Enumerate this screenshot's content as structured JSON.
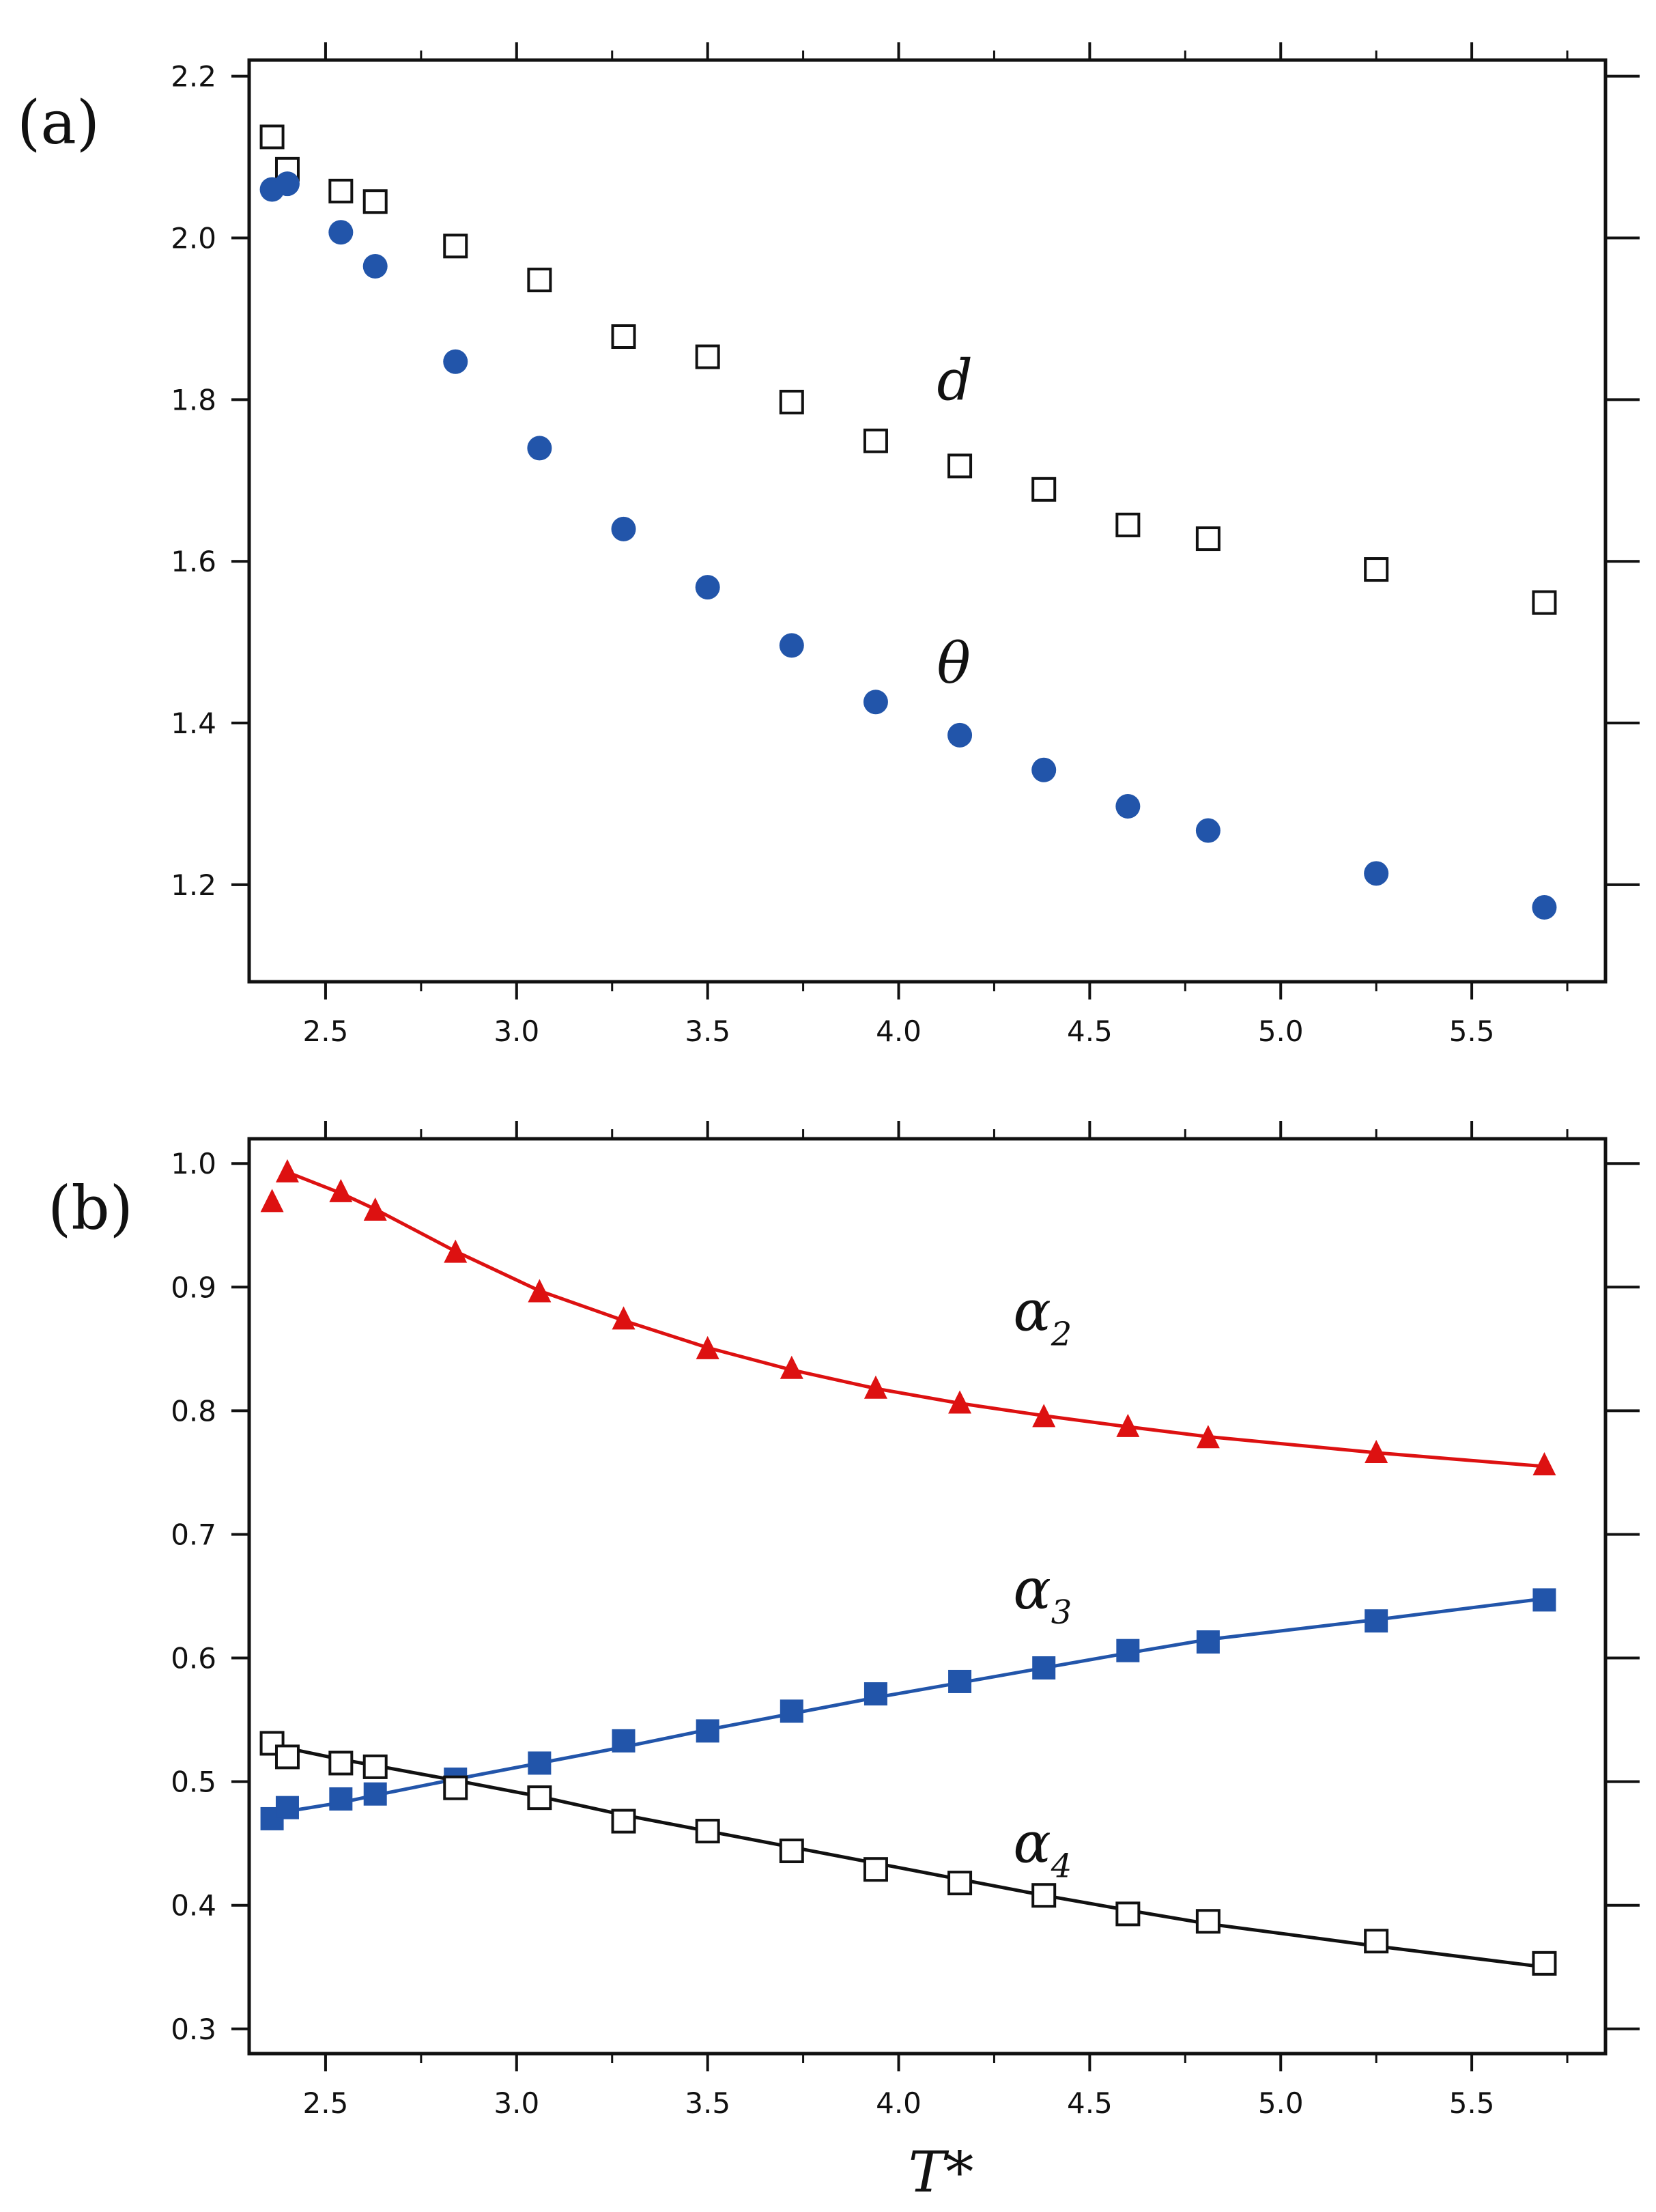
{
  "chart_data": [
    {
      "type": "scatter",
      "panel_label": "(a)",
      "xlabel": "",
      "ylabel": "",
      "xlim": [
        2.3,
        5.85
      ],
      "ylim": [
        1.08,
        2.22
      ],
      "xticks": [
        "2.5",
        "3.0",
        "3.5",
        "4.0",
        "4.5",
        "5.0",
        "5.5"
      ],
      "yticks": [
        "1.2",
        "1.4",
        "1.6",
        "1.8",
        "2.0",
        "2.2"
      ],
      "x": [
        2.36,
        2.4,
        2.54,
        2.63,
        2.84,
        3.06,
        3.28,
        3.5,
        3.72,
        3.94,
        4.16,
        4.38,
        4.6,
        4.81,
        5.25,
        5.69
      ],
      "series": [
        {
          "name": "d",
          "marker": "open-square",
          "color": "#111111",
          "values": [
            2.125,
            2.085,
            2.058,
            2.045,
            1.99,
            1.948,
            1.878,
            1.853,
            1.797,
            1.749,
            1.718,
            1.689,
            1.645,
            1.628,
            1.59,
            1.549
          ]
        },
        {
          "name": "θ",
          "marker": "filled-circle",
          "color": "#2255aa",
          "values": [
            2.06,
            2.067,
            2.007,
            1.965,
            1.847,
            1.74,
            1.64,
            1.568,
            1.496,
            1.426,
            1.385,
            1.342,
            1.297,
            1.267,
            1.214,
            1.172
          ]
        }
      ],
      "annotations": [
        {
          "text": "d",
          "x": 4.1,
          "y": 1.8
        },
        {
          "text": "θ",
          "x": 4.1,
          "y": 1.45
        }
      ]
    },
    {
      "type": "line",
      "panel_label": "(b)",
      "xlabel": "T*",
      "ylabel": "",
      "xlim": [
        2.3,
        5.85
      ],
      "ylim": [
        0.28,
        1.02
      ],
      "xticks": [
        "2.5",
        "3.0",
        "3.5",
        "4.0",
        "4.5",
        "5.0",
        "5.5"
      ],
      "yticks": [
        "0.3",
        "0.4",
        "0.5",
        "0.6",
        "0.7",
        "0.8",
        "0.9",
        "1.0"
      ],
      "x": [
        2.36,
        2.4,
        2.54,
        2.63,
        2.84,
        3.06,
        3.28,
        3.5,
        3.72,
        3.94,
        4.16,
        4.38,
        4.6,
        4.81,
        5.25,
        5.69
      ],
      "series": [
        {
          "name": "α",
          "subscript": "2",
          "marker": "filled-triangle",
          "color": "#dd1111",
          "values": [
            0.969,
            0.993,
            0.977,
            0.962,
            0.928,
            0.896,
            0.874,
            0.85,
            0.834,
            0.818,
            0.806,
            0.795,
            0.787,
            0.778,
            0.766,
            0.756
          ],
          "fit": [
            0.993,
            0.976,
            0.963,
            0.929,
            0.897,
            0.873,
            0.851,
            0.833,
            0.818,
            0.806,
            0.796,
            0.787,
            0.779,
            0.766,
            0.755
          ]
        },
        {
          "name": "α",
          "subscript": "3",
          "marker": "filled-square",
          "color": "#2255aa",
          "values": [
            0.47,
            0.479,
            0.486,
            0.49,
            0.502,
            0.515,
            0.533,
            0.541,
            0.557,
            0.571,
            0.581,
            0.592,
            0.606,
            0.613,
            0.63,
            0.647
          ],
          "fit": [
            0.469,
            0.476,
            0.483,
            0.489,
            0.502,
            0.515,
            0.528,
            0.542,
            0.555,
            0.568,
            0.58,
            0.592,
            0.604,
            0.615,
            0.631,
            0.648
          ]
        },
        {
          "name": "α",
          "subscript": "4",
          "marker": "open-square",
          "color": "#111111",
          "values": [
            0.531,
            0.52,
            0.515,
            0.512,
            0.495,
            0.487,
            0.468,
            0.46,
            0.444,
            0.429,
            0.418,
            0.408,
            0.393,
            0.387,
            0.371,
            0.353
          ],
          "fit": [
            0.527,
            0.518,
            0.513,
            0.501,
            0.488,
            0.473,
            0.46,
            0.447,
            0.434,
            0.421,
            0.408,
            0.396,
            0.385,
            0.367,
            0.35
          ]
        }
      ],
      "annotations": [
        {
          "text": "α",
          "sub": "2",
          "x": 4.3,
          "y": 0.865
        },
        {
          "text": "α",
          "sub": "3",
          "x": 4.3,
          "y": 0.64
        },
        {
          "text": "α",
          "sub": "4",
          "x": 4.3,
          "y": 0.435
        }
      ]
    }
  ]
}
